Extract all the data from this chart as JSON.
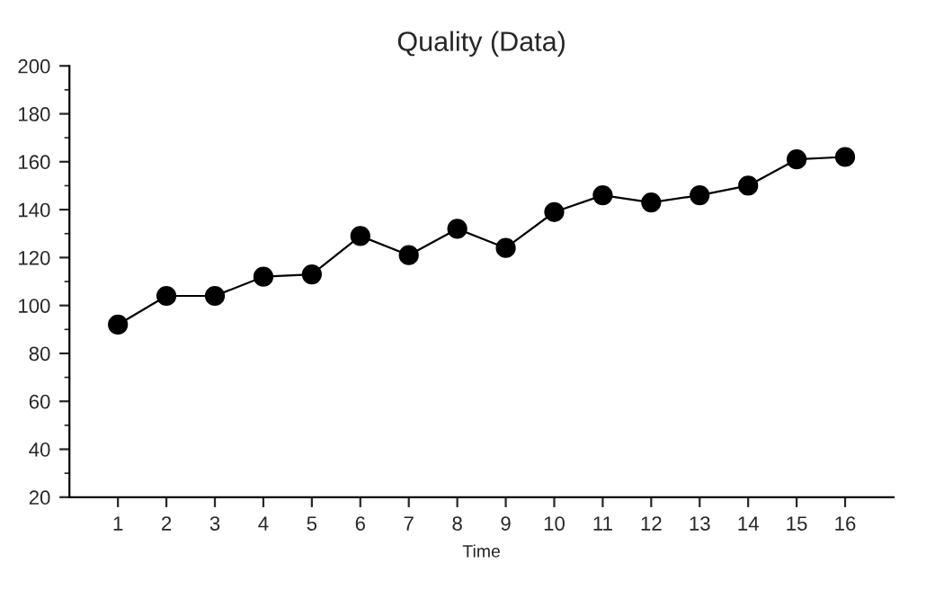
{
  "chart_data": {
    "type": "line",
    "title": "Quality (Data)",
    "xlabel": "Time",
    "categories": [
      "1",
      "2",
      "3",
      "4",
      "5",
      "6",
      "7",
      "8",
      "9",
      "10",
      "11",
      "12",
      "13",
      "14",
      "15",
      "16"
    ],
    "series": [
      {
        "color": "#000000",
        "values": [
          92,
          104,
          104,
          112,
          113,
          129,
          121,
          132,
          124,
          139,
          146,
          143,
          146,
          150,
          161,
          162
        ]
      }
    ],
    "ylim": [
      20,
      200
    ],
    "yticks": [
      20,
      40,
      60,
      80,
      100,
      120,
      140,
      160,
      180,
      200
    ],
    "marker": "circle",
    "line_style": "solid",
    "grid": false,
    "legend": false
  }
}
